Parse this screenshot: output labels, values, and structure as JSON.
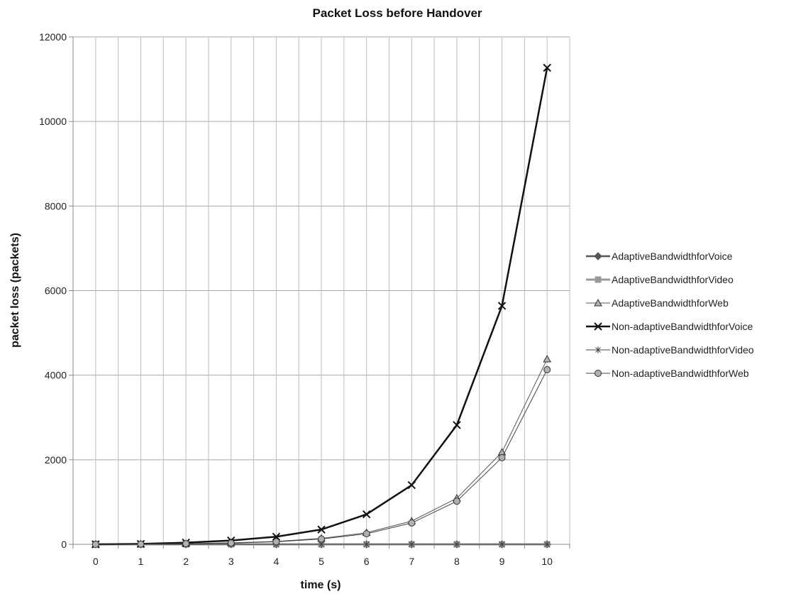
{
  "chart_data": {
    "type": "line",
    "title": "Packet Loss before Handover",
    "xlabel": "time (s)",
    "ylabel": "packet loss (packets)",
    "x": [
      0,
      1,
      2,
      3,
      4,
      5,
      6,
      7,
      8,
      9,
      10
    ],
    "xlim": [
      0,
      10
    ],
    "ylim": [
      0,
      12000
    ],
    "yticks": [
      0,
      2000,
      4000,
      6000,
      8000,
      10000,
      12000
    ],
    "grid": true,
    "legend_position": "right",
    "series": [
      {
        "name": "AdaptiveBandwidthforVoice",
        "marker": "diamond",
        "color": "#555555",
        "values": [
          0,
          0,
          0,
          0,
          0,
          0,
          0,
          0,
          0,
          0,
          0
        ]
      },
      {
        "name": "AdaptiveBandwidthforVideo",
        "marker": "square",
        "color": "#999999",
        "values": [
          0,
          0,
          0,
          0,
          0,
          0,
          0,
          0,
          0,
          0,
          0
        ]
      },
      {
        "name": "AdaptiveBandwidthforWeb",
        "marker": "triangle",
        "color": "#555555",
        "values": [
          0,
          5,
          15,
          35,
          70,
          140,
          275,
          550,
          1090,
          2180,
          4380
        ]
      },
      {
        "name": "Non-adaptiveBandwidthforVoice",
        "marker": "x",
        "color": "#111111",
        "values": [
          0,
          10,
          40,
          90,
          180,
          350,
          710,
          1400,
          2820,
          5640,
          11270
        ]
      },
      {
        "name": "Non-adaptiveBandwidthforVideo",
        "marker": "star",
        "color": "#444444",
        "values": [
          0,
          0,
          0,
          0,
          0,
          0,
          0,
          0,
          0,
          0,
          0
        ]
      },
      {
        "name": "Non-adaptiveBandwidthforWeb",
        "marker": "circle",
        "color": "#444444",
        "values": [
          0,
          5,
          15,
          30,
          60,
          125,
          250,
          505,
          1020,
          2050,
          4130
        ]
      }
    ]
  }
}
